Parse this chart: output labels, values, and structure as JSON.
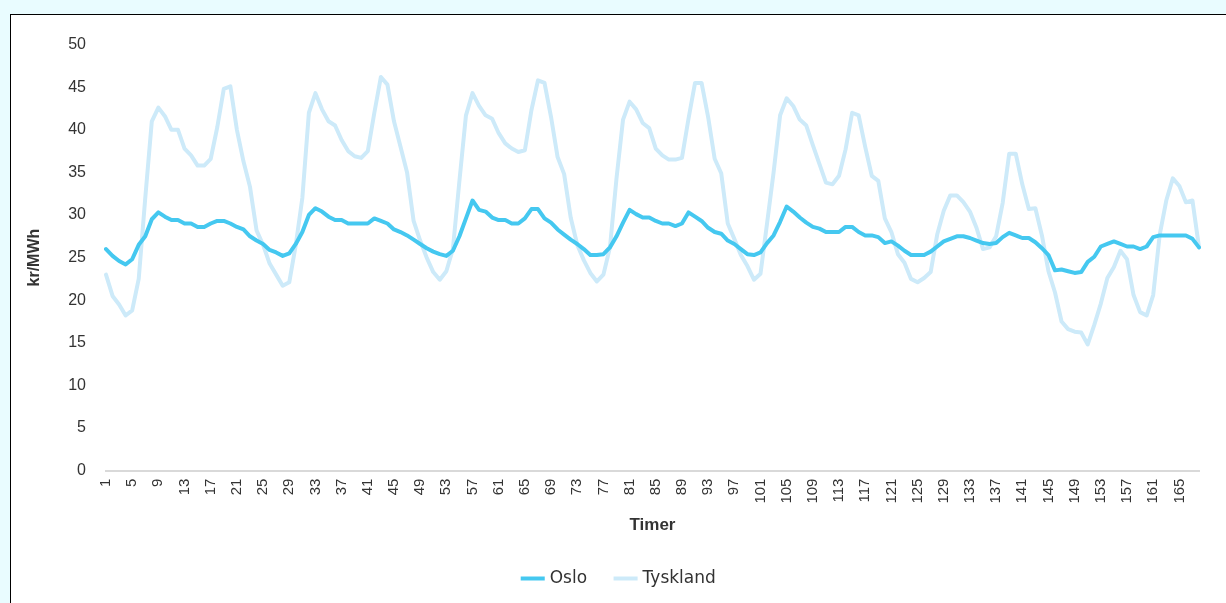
{
  "chart_data": {
    "type": "line",
    "xlabel": "Timer",
    "ylabel": "kr/MWh",
    "categories": [
      "1",
      null,
      null,
      null,
      "5",
      null,
      null,
      null,
      "9",
      null,
      null,
      null,
      "13",
      null,
      null,
      null,
      "17",
      null,
      null,
      null,
      "21",
      null,
      null,
      null,
      "25",
      null,
      null,
      null,
      "29",
      null,
      null,
      null,
      "33",
      null,
      null,
      null,
      "37",
      null,
      null,
      null,
      "41",
      null,
      null,
      null,
      "45",
      null,
      null,
      null,
      "49",
      null,
      null,
      null,
      "53",
      null,
      null,
      null,
      "57",
      null,
      null,
      null,
      "61",
      null,
      null,
      null,
      "65",
      null,
      null,
      null,
      "69",
      null,
      null,
      null,
      "73",
      null,
      null,
      null,
      "77",
      null,
      null,
      null,
      "81",
      null,
      null,
      null,
      "85",
      null,
      null,
      null,
      "89",
      null,
      null,
      null,
      "93",
      null,
      null,
      null,
      "97",
      null,
      null,
      null,
      "101",
      null,
      null,
      null,
      "105",
      null,
      null,
      null,
      "109",
      null,
      null,
      null,
      "113",
      null,
      null,
      null,
      "117",
      null,
      null,
      null,
      "121",
      null,
      null,
      null,
      "125",
      null,
      null,
      null,
      "129",
      null,
      null,
      null,
      "133",
      null,
      null,
      null,
      "137",
      null,
      null,
      null,
      "141",
      null,
      null,
      null,
      "145",
      null,
      null,
      null,
      "149",
      null,
      null,
      null,
      "153",
      null,
      null,
      null,
      "157",
      null,
      null,
      null,
      "161",
      null,
      null,
      null,
      "165",
      null,
      null,
      null
    ],
    "series": [
      {
        "name": "Oslo",
        "color": "#45c8f0",
        "values": [
          26,
          25.2,
          24.6,
          24.2,
          24.8,
          26.5,
          27.5,
          29.5,
          30.3,
          29.8,
          29.4,
          29.4,
          29,
          29,
          28.6,
          28.6,
          29,
          29.3,
          29.3,
          29,
          28.6,
          28.3,
          27.5,
          27,
          26.6,
          25.9,
          25.6,
          25.2,
          25.5,
          26.6,
          28,
          30,
          30.8,
          30.4,
          29.8,
          29.4,
          29.4,
          29,
          29,
          29,
          29,
          29.6,
          29.3,
          29,
          28.3,
          28,
          27.6,
          27.1,
          26.6,
          26.1,
          25.7,
          25.4,
          25.2,
          25.8,
          27.5,
          29.6,
          31.7,
          30.6,
          30.4,
          29.7,
          29.4,
          29.4,
          29,
          29,
          29.6,
          30.7,
          30.7,
          29.6,
          29.1,
          28.3,
          27.7,
          27.1,
          26.6,
          26,
          25.3,
          25.3,
          25.4,
          26.2,
          27.5,
          29.1,
          30.6,
          30.1,
          29.7,
          29.7,
          29.3,
          29,
          29,
          28.7,
          29,
          30.3,
          29.8,
          29.3,
          28.5,
          28,
          27.8,
          27,
          26.6,
          26,
          25.4,
          25.3,
          25.6,
          26.7,
          27.6,
          29.2,
          31,
          30.4,
          29.7,
          29.1,
          28.6,
          28.4,
          28,
          28,
          28,
          28.6,
          28.6,
          28,
          27.6,
          27.6,
          27.4,
          26.7,
          26.9,
          26.4,
          25.8,
          25.3,
          25.3,
          25.3,
          25.7,
          26.3,
          26.9,
          27.2,
          27.5,
          27.5,
          27.3,
          27,
          26.7,
          26.6,
          26.7,
          27.4,
          27.9,
          27.6,
          27.3,
          27.3,
          26.8,
          26.1,
          25.3,
          23.5,
          23.6,
          23.4,
          23.2,
          23.3,
          24.5,
          25.1,
          26.3,
          26.6,
          26.9,
          26.6,
          26.3,
          26.3,
          26,
          26.3,
          27.4,
          27.6,
          27.6,
          27.6,
          27.6,
          27.6,
          27.2,
          26.2
        ]
      },
      {
        "name": "Tyskland",
        "color": "#cdeaf9",
        "values": [
          23,
          20.5,
          19.5,
          18.2,
          18.8,
          22.5,
          32,
          41,
          42.6,
          41.6,
          40,
          40,
          37.8,
          37,
          35.8,
          35.8,
          36.6,
          40.3,
          44.8,
          45.1,
          40,
          36.3,
          33.3,
          28.2,
          26.5,
          24.3,
          23,
          21.7,
          22.1,
          26.5,
          32,
          42,
          44.3,
          42.4,
          41,
          40.5,
          38.8,
          37.5,
          36.9,
          36.7,
          37.5,
          42,
          46.2,
          45.3,
          41,
          38,
          35,
          29.3,
          27,
          25,
          23.3,
          22.4,
          23.4,
          26,
          34,
          41.7,
          44.3,
          42.8,
          41.7,
          41.3,
          39.6,
          38.4,
          37.8,
          37.4,
          37.6,
          42.3,
          45.8,
          45.5,
          41.5,
          36.8,
          34.8,
          29.7,
          26.5,
          24.7,
          23.2,
          22.2,
          23,
          26.2,
          34.3,
          41.2,
          43.3,
          42.4,
          40.8,
          40.2,
          37.8,
          37,
          36.5,
          36.5,
          36.7,
          41.3,
          45.5,
          45.5,
          41.5,
          36.6,
          34.9,
          29,
          27.2,
          25.3,
          24,
          22.4,
          23.1,
          29,
          35,
          41.7,
          43.7,
          42.8,
          41.2,
          40.5,
          38.2,
          36,
          33.8,
          33.6,
          34.6,
          37.7,
          42,
          41.7,
          38,
          34.6,
          34,
          29.6,
          28,
          25.4,
          24.4,
          22.5,
          22.1,
          22.6,
          23.3,
          27.7,
          30.5,
          32.3,
          32.3,
          31.5,
          30.4,
          28.5,
          26,
          26.2,
          27.5,
          31.4,
          37.2,
          37.2,
          33.6,
          30.7,
          30.8,
          27.6,
          23.4,
          20.9,
          17.5,
          16.6,
          16.3,
          16.2,
          14.8,
          17.1,
          19.6,
          22.6,
          23.9,
          25.8,
          24.8,
          20.6,
          18.6,
          18.2,
          20.6,
          27.7,
          31.7,
          34.3,
          33.4,
          31.5,
          31.7,
          26.2
        ]
      }
    ],
    "ylim": [
      0,
      50
    ],
    "yticks": [
      0,
      5,
      10,
      15,
      20,
      25,
      30,
      35,
      40,
      45,
      50
    ],
    "grid": false,
    "legend": "bottom",
    "marker": "none",
    "line_style": "solid"
  }
}
